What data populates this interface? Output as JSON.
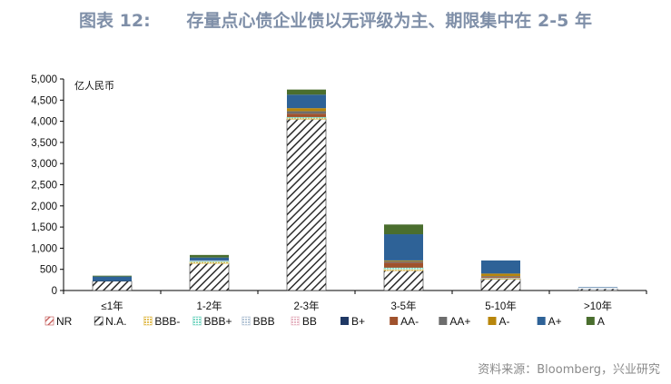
{
  "title": "图表 12:      存量点心债企业债以无评级为主、期限集中在 2-5 年",
  "source": "资料来源：Bloomberg，兴业研究",
  "chart_data": {
    "type": "bar",
    "stacked": true,
    "unit_label": "亿人民币",
    "categories": [
      "≤1年",
      "1-2年",
      "2-3年",
      "3-5年",
      "5-10年",
      ">10年"
    ],
    "ylim": [
      0,
      5000
    ],
    "y_ticks": [
      "0",
      "500",
      "1,000",
      "1,500",
      "2,000",
      "2,500",
      "3,000",
      "3,500",
      "4,000",
      "4,500",
      "5,000"
    ],
    "legend_position": "bottom",
    "series": [
      {
        "name": "NR",
        "color": "#c0504d",
        "pattern": "hatch-red",
        "values": [
          0,
          0,
          0,
          0,
          0,
          0
        ]
      },
      {
        "name": "N.A.",
        "color": "#2b2b2b",
        "pattern": "hatch-black",
        "values": [
          220,
          640,
          4050,
          470,
          270,
          40
        ]
      },
      {
        "name": "BBB-",
        "color": "#e3c05a",
        "pattern": "dots-yellow",
        "values": [
          0,
          40,
          30,
          40,
          20,
          0
        ]
      },
      {
        "name": "BBB+",
        "color": "#7fd8c6",
        "pattern": "dots-teal",
        "values": [
          0,
          20,
          20,
          30,
          0,
          0
        ]
      },
      {
        "name": "BBB",
        "color": "#b8c8d8",
        "pattern": "dots-gray",
        "values": [
          0,
          10,
          0,
          0,
          10,
          30
        ]
      },
      {
        "name": "BB",
        "color": "#e7b7c4",
        "pattern": "dots-pink",
        "values": [
          0,
          0,
          0,
          0,
          0,
          0
        ]
      },
      {
        "name": "B+",
        "color": "#1f3864",
        "pattern": null,
        "values": [
          0,
          0,
          0,
          0,
          0,
          0
        ]
      },
      {
        "name": "AA-",
        "color": "#a0522d",
        "pattern": null,
        "values": [
          0,
          0,
          80,
          120,
          20,
          0
        ]
      },
      {
        "name": "AA+",
        "color": "#6d6d6d",
        "pattern": null,
        "values": [
          0,
          0,
          60,
          30,
          20,
          0
        ]
      },
      {
        "name": "A-",
        "color": "#b8860b",
        "pattern": null,
        "values": [
          0,
          0,
          70,
          20,
          60,
          0
        ]
      },
      {
        "name": "A+",
        "color": "#2e6297",
        "pattern": null,
        "values": [
          110,
          70,
          320,
          620,
          310,
          10
        ]
      },
      {
        "name": "A",
        "color": "#4a6e2e",
        "pattern": null,
        "values": [
          20,
          60,
          120,
          230,
          0,
          0
        ]
      }
    ]
  }
}
